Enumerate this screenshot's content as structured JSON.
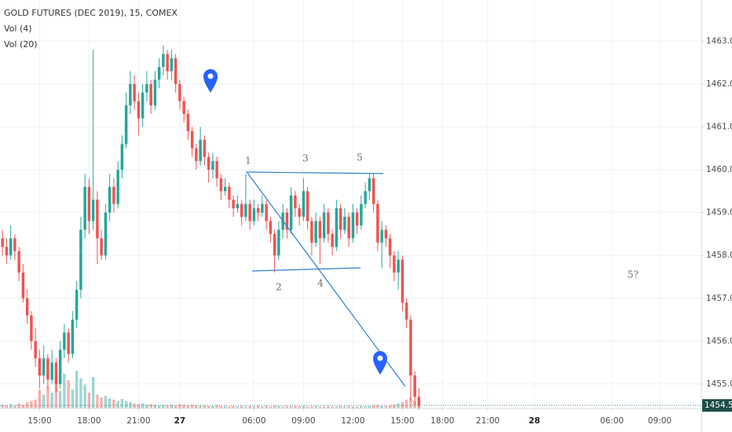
{
  "chart_data": {
    "type": "candlestick",
    "title": "GOLD FUTURES (DEC 2019), 15, COMEX",
    "indicators": [
      "Vol (4)",
      "Vol (20)"
    ],
    "up_color": "#26a69a",
    "down_color": "#ef5350",
    "grid": true,
    "ylim": [
      1454.43,
      1463.96
    ],
    "yticks": [
      {
        "value": 1455,
        "label": "1455.0"
      },
      {
        "value": 1456,
        "label": "1456.0"
      },
      {
        "value": 1457,
        "label": "1457.0"
      },
      {
        "value": 1458,
        "label": "1458.0"
      },
      {
        "value": 1459,
        "label": "1459.0"
      },
      {
        "value": 1460,
        "label": "1460.0"
      },
      {
        "value": 1461,
        "label": "1461.0"
      },
      {
        "value": 1462,
        "label": "1462.0"
      },
      {
        "value": 1463,
        "label": "1463.0"
      }
    ],
    "xlim": [
      -0.6,
      169.5
    ],
    "xticks": [
      {
        "value": 9,
        "label": "15:00"
      },
      {
        "value": 21,
        "label": "18:00"
      },
      {
        "value": 33,
        "label": "21:00"
      },
      {
        "value": 43,
        "label": "27"
      },
      {
        "value": 61,
        "label": "06:00"
      },
      {
        "value": 73,
        "label": "09:00"
      },
      {
        "value": 85,
        "label": "12:00"
      },
      {
        "value": 97,
        "label": "15:00"
      },
      {
        "value": 106.7,
        "label": "18:00"
      },
      {
        "value": 117.7,
        "label": "21:00"
      },
      {
        "value": 129,
        "label": "28"
      },
      {
        "value": 147.8,
        "label": "06:00"
      },
      {
        "value": 159.4,
        "label": "09:00"
      }
    ],
    "last_price": 1454.5,
    "annotations": [
      "1",
      "2",
      "3",
      "4",
      "5",
      "5?"
    ],
    "ohlc": [
      [
        1458.4,
        1458.6,
        1458.0,
        1458.2
      ],
      [
        1458.2,
        1458.4,
        1457.8,
        1458.0
      ],
      [
        1458.0,
        1458.7,
        1457.9,
        1458.4
      ],
      [
        1458.4,
        1458.5,
        1457.9,
        1458.1
      ],
      [
        1458.1,
        1458.2,
        1457.4,
        1457.6
      ],
      [
        1457.6,
        1457.8,
        1456.9,
        1457.0
      ],
      [
        1457.0,
        1457.2,
        1456.4,
        1456.6
      ],
      [
        1456.6,
        1456.7,
        1455.8,
        1456.0
      ],
      [
        1456.0,
        1456.3,
        1455.4,
        1455.6
      ],
      [
        1455.6,
        1455.8,
        1454.9,
        1455.2
      ],
      [
        1455.2,
        1455.9,
        1455.0,
        1455.6
      ],
      [
        1455.6,
        1455.7,
        1454.9,
        1455.1
      ],
      [
        1455.1,
        1455.8,
        1455.0,
        1455.5
      ],
      [
        1455.5,
        1455.6,
        1454.8,
        1455.0
      ],
      [
        1455.0,
        1456.0,
        1454.9,
        1455.8
      ],
      [
        1455.8,
        1456.4,
        1455.6,
        1456.2
      ],
      [
        1456.2,
        1456.3,
        1455.5,
        1455.7
      ],
      [
        1455.7,
        1456.7,
        1455.6,
        1456.5
      ],
      [
        1456.5,
        1457.4,
        1456.3,
        1457.2
      ],
      [
        1457.2,
        1458.9,
        1457.0,
        1458.6
      ],
      [
        1458.6,
        1459.9,
        1458.4,
        1459.6
      ],
      [
        1459.6,
        1459.8,
        1458.5,
        1458.8
      ],
      [
        1458.8,
        1462.8,
        1458.6,
        1459.3
      ],
      [
        1459.3,
        1459.5,
        1457.8,
        1458.4
      ],
      [
        1458.4,
        1458.6,
        1457.9,
        1458.0
      ],
      [
        1458.0,
        1459.2,
        1457.9,
        1459.0
      ],
      [
        1459.0,
        1459.9,
        1458.8,
        1459.6
      ],
      [
        1459.6,
        1459.8,
        1459.0,
        1459.2
      ],
      [
        1459.2,
        1460.2,
        1459.1,
        1460.0
      ],
      [
        1460.0,
        1460.8,
        1459.8,
        1460.6
      ],
      [
        1460.6,
        1461.8,
        1460.5,
        1461.5
      ],
      [
        1461.5,
        1462.3,
        1461.3,
        1462.0
      ],
      [
        1462.0,
        1462.2,
        1461.4,
        1461.6
      ],
      [
        1461.6,
        1461.8,
        1460.8,
        1461.2
      ],
      [
        1461.2,
        1462.0,
        1461.0,
        1461.8
      ],
      [
        1461.8,
        1462.3,
        1461.6,
        1462.0
      ],
      [
        1462.0,
        1462.1,
        1461.3,
        1461.5
      ],
      [
        1461.5,
        1462.3,
        1461.4,
        1462.1
      ],
      [
        1462.1,
        1462.6,
        1461.9,
        1462.4
      ],
      [
        1462.4,
        1462.9,
        1462.2,
        1462.7
      ],
      [
        1462.7,
        1462.8,
        1462.1,
        1462.3
      ],
      [
        1462.3,
        1462.8,
        1462.1,
        1462.6
      ],
      [
        1462.6,
        1462.7,
        1461.8,
        1462.0
      ],
      [
        1462.0,
        1462.1,
        1461.4,
        1461.6
      ],
      [
        1461.6,
        1461.7,
        1461.1,
        1461.3
      ],
      [
        1461.3,
        1461.4,
        1460.7,
        1460.9
      ],
      [
        1460.9,
        1461.0,
        1460.3,
        1460.5
      ],
      [
        1460.5,
        1460.6,
        1460.0,
        1460.2
      ],
      [
        1460.2,
        1461.0,
        1460.1,
        1460.7
      ],
      [
        1460.7,
        1460.8,
        1460.1,
        1460.3
      ],
      [
        1460.3,
        1460.4,
        1459.7,
        1460.0
      ],
      [
        1460.0,
        1460.4,
        1459.8,
        1460.2
      ],
      [
        1460.2,
        1460.3,
        1459.6,
        1459.8
      ],
      [
        1459.8,
        1459.9,
        1459.3,
        1459.5
      ],
      [
        1459.5,
        1459.8,
        1459.4,
        1459.6
      ],
      [
        1459.6,
        1459.7,
        1459.1,
        1459.3
      ],
      [
        1459.3,
        1459.4,
        1458.9,
        1459.1
      ],
      [
        1459.1,
        1459.4,
        1459.0,
        1459.2
      ],
      [
        1459.2,
        1459.3,
        1458.7,
        1458.9
      ],
      [
        1458.9,
        1459.9,
        1458.8,
        1459.2
      ],
      [
        1459.2,
        1459.3,
        1458.6,
        1458.8
      ],
      [
        1458.8,
        1459.3,
        1458.7,
        1459.1
      ],
      [
        1459.1,
        1459.2,
        1458.8,
        1459.0
      ],
      [
        1459.0,
        1459.4,
        1458.9,
        1459.2
      ],
      [
        1459.2,
        1459.3,
        1458.6,
        1458.8
      ],
      [
        1458.8,
        1458.9,
        1458.3,
        1458.5
      ],
      [
        1458.5,
        1458.6,
        1457.6,
        1458.0
      ],
      [
        1458.0,
        1458.8,
        1457.9,
        1458.6
      ],
      [
        1458.6,
        1459.2,
        1458.4,
        1459.0
      ],
      [
        1459.0,
        1459.1,
        1458.4,
        1458.6
      ],
      [
        1458.6,
        1459.6,
        1458.5,
        1459.4
      ],
      [
        1459.4,
        1459.5,
        1458.9,
        1459.1
      ],
      [
        1459.1,
        1459.2,
        1458.7,
        1458.9
      ],
      [
        1458.9,
        1459.8,
        1458.8,
        1459.5
      ],
      [
        1459.5,
        1459.6,
        1458.6,
        1458.8
      ],
      [
        1458.8,
        1458.9,
        1458.0,
        1458.3
      ],
      [
        1458.3,
        1459.0,
        1458.2,
        1458.8
      ],
      [
        1458.8,
        1458.9,
        1457.8,
        1458.4
      ],
      [
        1458.4,
        1459.2,
        1458.3,
        1459.0
      ],
      [
        1459.0,
        1459.1,
        1458.3,
        1458.5
      ],
      [
        1458.5,
        1458.6,
        1458.0,
        1458.2
      ],
      [
        1458.2,
        1459.3,
        1458.1,
        1459.1
      ],
      [
        1459.1,
        1459.2,
        1458.4,
        1458.6
      ],
      [
        1458.6,
        1459.1,
        1458.5,
        1458.9
      ],
      [
        1458.9,
        1459.0,
        1458.2,
        1458.4
      ],
      [
        1458.4,
        1459.2,
        1458.3,
        1459.0
      ],
      [
        1459.0,
        1459.1,
        1458.5,
        1458.7
      ],
      [
        1458.7,
        1459.4,
        1458.6,
        1459.2
      ],
      [
        1459.2,
        1459.7,
        1459.1,
        1459.5
      ],
      [
        1459.5,
        1459.9,
        1459.3,
        1459.8
      ],
      [
        1459.8,
        1459.9,
        1459.0,
        1459.2
      ],
      [
        1459.2,
        1459.3,
        1458.1,
        1458.3
      ],
      [
        1458.3,
        1458.8,
        1457.7,
        1458.6
      ],
      [
        1458.6,
        1458.7,
        1458.2,
        1458.4
      ],
      [
        1458.4,
        1458.5,
        1457.7,
        1458.0
      ],
      [
        1458.0,
        1458.1,
        1457.4,
        1457.6
      ],
      [
        1457.6,
        1458.1,
        1457.2,
        1457.9
      ],
      [
        1457.9,
        1458.0,
        1456.7,
        1456.9
      ],
      [
        1456.9,
        1457.0,
        1456.3,
        1456.5
      ],
      [
        1456.5,
        1456.6,
        1454.6,
        1455.2
      ],
      [
        1455.2,
        1455.3,
        1454.5,
        1454.7
      ],
      [
        1454.7,
        1454.9,
        1454.4,
        1454.5
      ]
    ],
    "vlim": [
      0,
      100
    ],
    "volumes": [
      6,
      5,
      7,
      5,
      8,
      6,
      10,
      12,
      14,
      30,
      22,
      35,
      25,
      40,
      28,
      55,
      45,
      30,
      60,
      48,
      38,
      25,
      50,
      22,
      18,
      20,
      16,
      14,
      12,
      15,
      12,
      10,
      8,
      7,
      8,
      6,
      7,
      6,
      5,
      6,
      5,
      6,
      5,
      7,
      6,
      5,
      6,
      5,
      4,
      5,
      4,
      4,
      5,
      4,
      4,
      3,
      4,
      3,
      4,
      3,
      4,
      3,
      4,
      3,
      4,
      3,
      5,
      4,
      3,
      4,
      3,
      4,
      3,
      4,
      3,
      3,
      4,
      3,
      3,
      4,
      3,
      3,
      4,
      3,
      4,
      3,
      3,
      4,
      3,
      4,
      5,
      5,
      4,
      4,
      5,
      6,
      8,
      10,
      14,
      18,
      12,
      6
    ]
  }
}
